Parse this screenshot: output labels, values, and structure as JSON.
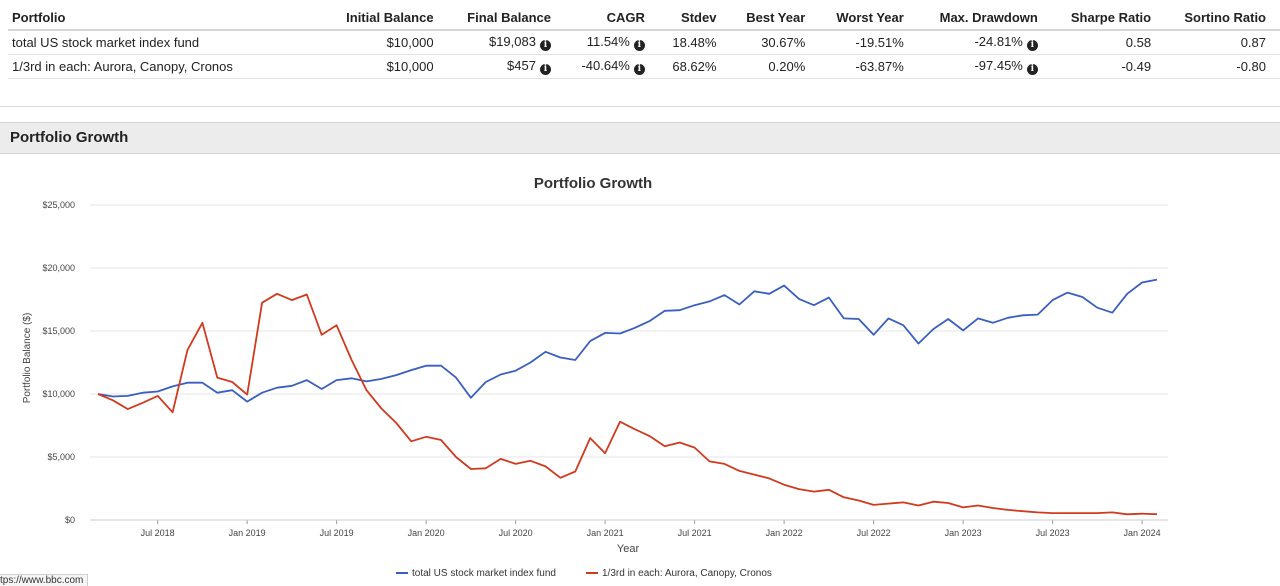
{
  "table": {
    "headers": [
      "Portfolio",
      "Initial Balance",
      "Final Balance",
      "CAGR",
      "Stdev",
      "Best Year",
      "Worst Year",
      "Max. Drawdown",
      "Sharpe Ratio",
      "Sortino Ratio"
    ],
    "rows": [
      {
        "portfolio": "total US stock market index fund",
        "initial_balance": "$10,000",
        "final_balance": "$19,083",
        "cagr": "11.54%",
        "stdev": "18.48%",
        "best_year": "30.67%",
        "worst_year": "-19.51%",
        "max_drawdown": "-24.81%",
        "sharpe_ratio": "0.58",
        "sortino_ratio": "0.87"
      },
      {
        "portfolio": "1/3rd in each: Aurora, Canopy, Cronos",
        "initial_balance": "$10,000",
        "final_balance": "$457",
        "cagr": "-40.64%",
        "stdev": "68.62%",
        "best_year": "0.20%",
        "worst_year": "-63.87%",
        "max_drawdown": "-97.45%",
        "sharpe_ratio": "-0.49",
        "sortino_ratio": "-0.80"
      }
    ],
    "info_icon": "info-circle-icon"
  },
  "section": {
    "title": "Portfolio Growth"
  },
  "status_bar": {
    "url": "tps://www.bbc.com"
  },
  "chart_data": {
    "type": "line",
    "title": "Portfolio Growth",
    "xlabel": "Year",
    "ylabel": "Portfolio Balance ($)",
    "ylim": [
      0,
      25000
    ],
    "yticks": [
      0,
      5000,
      10000,
      15000,
      20000,
      25000
    ],
    "ytick_labels": [
      "$0",
      "$5,000",
      "$10,000",
      "$15,000",
      "$20,000",
      "$25,000"
    ],
    "xtick_labels": [
      "Jul 2018",
      "Jan 2019",
      "Jul 2019",
      "Jan 2020",
      "Jul 2020",
      "Jan 2021",
      "Jul 2021",
      "Jan 2022",
      "Jul 2022",
      "Jan 2023",
      "Jul 2023",
      "Jan 2024"
    ],
    "x_start": "Mar 2018",
    "x_end": "Feb 2024",
    "grid": true,
    "legend_position": "bottom",
    "series": [
      {
        "name": "total US stock market index fund",
        "color": "#3a5fc0",
        "values": [
          10000,
          9800,
          9850,
          10100,
          10200,
          10600,
          10900,
          10900,
          10100,
          10300,
          9400,
          10100,
          10500,
          10650,
          11100,
          10400,
          11100,
          11250,
          11000,
          11200,
          11500,
          11900,
          12250,
          12250,
          11300,
          9700,
          10950,
          11550,
          11850,
          12500,
          13350,
          12900,
          12700,
          14200,
          14850,
          14800,
          15250,
          15800,
          16600,
          16650,
          17050,
          17350,
          17850,
          17100,
          18150,
          17950,
          18600,
          17550,
          17050,
          17650,
          16000,
          15950,
          14700,
          16000,
          15450,
          14000,
          15150,
          15950,
          15050,
          16000,
          15650,
          16050,
          16250,
          16300,
          17450,
          18050,
          17700,
          16850,
          16450,
          17950,
          18850,
          19083
        ]
      },
      {
        "name": "1/3rd in each: Aurora, Canopy, Cronos",
        "color": "#d03a1e",
        "values": [
          10000,
          9500,
          8800,
          9300,
          9850,
          8550,
          13500,
          15650,
          11300,
          10950,
          9950,
          17250,
          17950,
          17450,
          17900,
          14700,
          15450,
          12700,
          10300,
          8850,
          7700,
          6250,
          6600,
          6350,
          5000,
          4050,
          4100,
          4850,
          4450,
          4700,
          4250,
          3350,
          3850,
          6500,
          5300,
          7800,
          7200,
          6650,
          5850,
          6150,
          5750,
          4650,
          4450,
          3900,
          3600,
          3300,
          2800,
          2450,
          2250,
          2400,
          1800,
          1550,
          1200,
          1300,
          1400,
          1150,
          1450,
          1350,
          1000,
          1150,
          950,
          800,
          700,
          600,
          550,
          550,
          550,
          550,
          600,
          450,
          500,
          457
        ]
      }
    ]
  }
}
